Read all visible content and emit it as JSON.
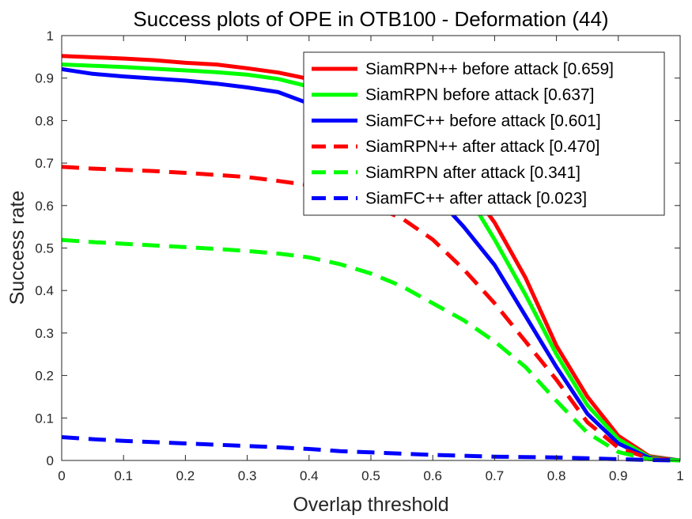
{
  "chart_data": {
    "type": "line",
    "title": "Success plots of OPE in OTB100 - Deformation (44)",
    "xlabel": "Overlap threshold",
    "ylabel": "Success rate",
    "xlim": [
      0,
      1
    ],
    "ylim": [
      0,
      1
    ],
    "xticks": [
      "0",
      "0.1",
      "0.2",
      "0.3",
      "0.4",
      "0.5",
      "0.6",
      "0.7",
      "0.8",
      "0.9",
      "1"
    ],
    "yticks": [
      "0",
      "0.1",
      "0.2",
      "0.3",
      "0.4",
      "0.5",
      "0.6",
      "0.7",
      "0.8",
      "0.9",
      "1"
    ],
    "grid": false,
    "legend_position": "top-right",
    "x": [
      0,
      0.05,
      0.1,
      0.15,
      0.2,
      0.25,
      0.3,
      0.35,
      0.4,
      0.45,
      0.5,
      0.55,
      0.6,
      0.65,
      0.7,
      0.75,
      0.8,
      0.85,
      0.9,
      0.95,
      1
    ],
    "series": [
      {
        "name": "SiamRPN++ before attack [0.659]",
        "color": "#ff0000",
        "dash": "solid",
        "values": [
          0.952,
          0.949,
          0.946,
          0.942,
          0.936,
          0.932,
          0.923,
          0.913,
          0.898,
          0.88,
          0.85,
          0.8,
          0.74,
          0.66,
          0.56,
          0.43,
          0.27,
          0.15,
          0.058,
          0.01,
          0.0
        ]
      },
      {
        "name": "SiamRPN before attack [0.637]",
        "color": "#00ff00",
        "dash": "solid",
        "values": [
          0.932,
          0.929,
          0.926,
          0.922,
          0.918,
          0.914,
          0.908,
          0.898,
          0.88,
          0.86,
          0.83,
          0.78,
          0.72,
          0.64,
          0.52,
          0.39,
          0.25,
          0.13,
          0.05,
          0.008,
          0.0
        ]
      },
      {
        "name": "SiamFC++ before attack [0.601]",
        "color": "#0000ff",
        "dash": "solid",
        "values": [
          0.921,
          0.91,
          0.904,
          0.899,
          0.894,
          0.887,
          0.878,
          0.867,
          0.84,
          0.8,
          0.76,
          0.7,
          0.63,
          0.55,
          0.46,
          0.34,
          0.22,
          0.11,
          0.04,
          0.006,
          0.0
        ]
      },
      {
        "name": "SiamRPN++ after attack [0.470]",
        "color": "#ff0000",
        "dash": "dashed",
        "values": [
          0.691,
          0.687,
          0.684,
          0.681,
          0.677,
          0.672,
          0.667,
          0.658,
          0.648,
          0.63,
          0.6,
          0.57,
          0.52,
          0.45,
          0.37,
          0.28,
          0.19,
          0.09,
          0.03,
          0.005,
          0.0
        ]
      },
      {
        "name": "SiamRPN after attack [0.341]",
        "color": "#00ff00",
        "dash": "dashed",
        "values": [
          0.519,
          0.514,
          0.51,
          0.506,
          0.502,
          0.498,
          0.493,
          0.487,
          0.478,
          0.462,
          0.44,
          0.41,
          0.37,
          0.33,
          0.28,
          0.22,
          0.14,
          0.065,
          0.02,
          0.003,
          0.0
        ]
      },
      {
        "name": "SiamFC++ after attack [0.023]",
        "color": "#0000ff",
        "dash": "dashed",
        "values": [
          0.055,
          0.05,
          0.046,
          0.043,
          0.04,
          0.037,
          0.034,
          0.031,
          0.027,
          0.022,
          0.019,
          0.016,
          0.013,
          0.011,
          0.009,
          0.008,
          0.007,
          0.005,
          0.003,
          0.001,
          0.0
        ]
      }
    ]
  }
}
